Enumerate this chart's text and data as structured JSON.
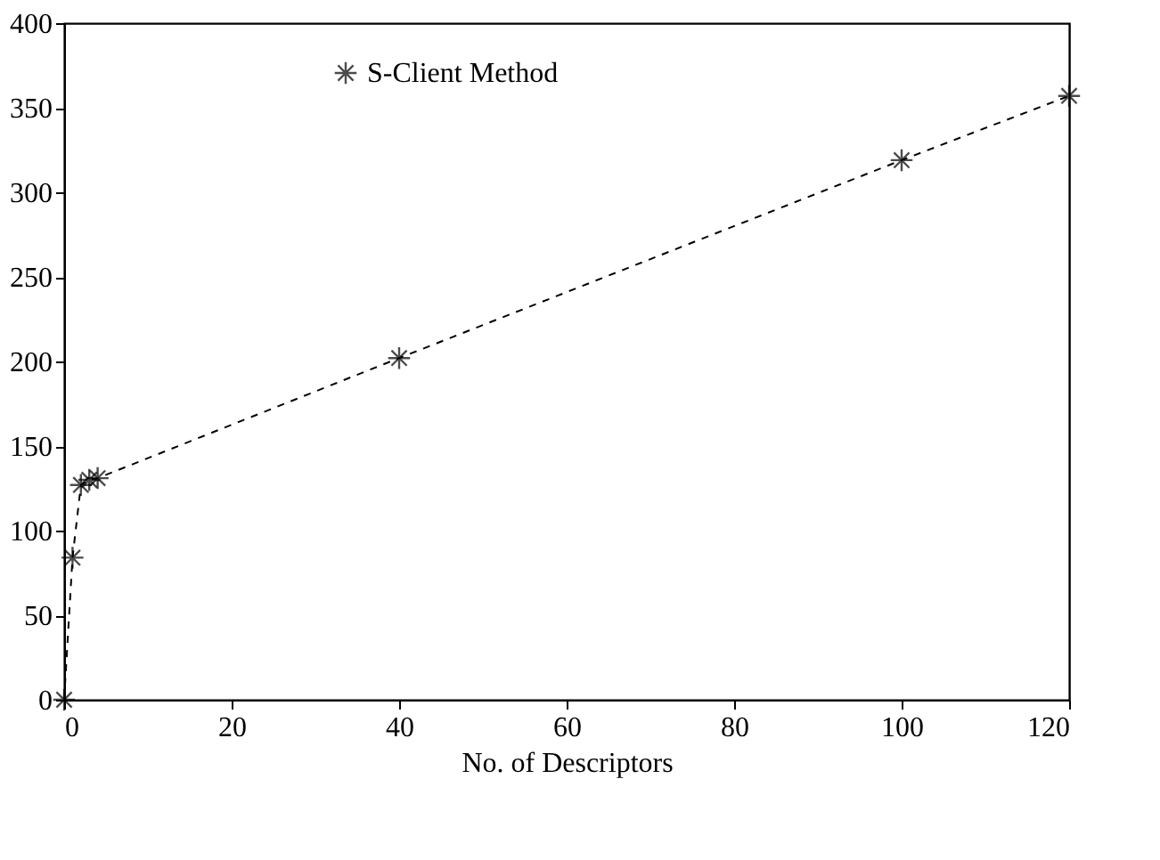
{
  "chart_data": {
    "type": "line",
    "xlabel": "No. of Descriptors",
    "x": [
      0,
      1,
      2,
      3,
      4,
      40,
      100,
      120
    ],
    "series": [
      {
        "name": "S-Client Method",
        "color": "#000000",
        "values": [
          0,
          84,
          127,
          130,
          131,
          202,
          319,
          357
        ]
      }
    ],
    "xlim": [
      0,
      120
    ],
    "xticks": [
      0,
      20,
      40,
      60,
      80,
      100,
      120
    ],
    "ylim": [
      0,
      400
    ],
    "yticks": [
      0,
      50,
      100,
      150,
      200,
      250,
      300,
      350,
      400
    ],
    "marker": "cross",
    "line_style": "dashed",
    "grid": false,
    "legend": "top"
  }
}
